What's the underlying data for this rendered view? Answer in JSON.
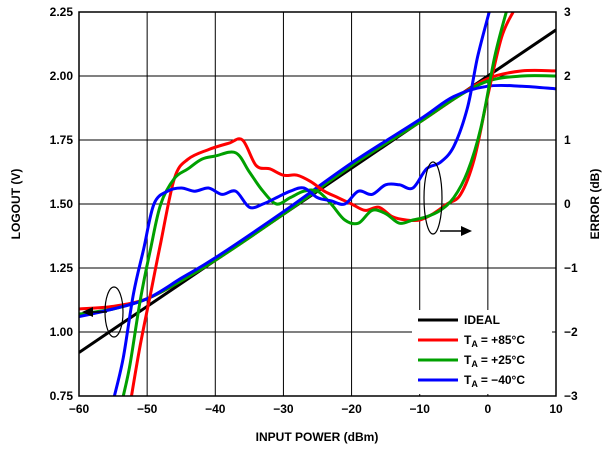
{
  "chart_data": {
    "type": "line",
    "xlabel": "INPUT POWER (dBm)",
    "ylabel_left": "LOGOUT (V)",
    "ylabel_right": "ERROR (dB)",
    "xlim": [
      -60,
      10
    ],
    "ylim_left": [
      0.75,
      2.25
    ],
    "ylim_right": [
      -3,
      3
    ],
    "grid": true,
    "legend_position": "bottom-right",
    "x_ticks": [
      "−60",
      "−50",
      "−40",
      "−30",
      "−20",
      "−10",
      "0",
      "10"
    ],
    "y_left_ticks": [
      "0.75",
      "1.00",
      "1.25",
      "1.50",
      "1.75",
      "2.00",
      "2.25"
    ],
    "y_right_ticks": [
      "−3",
      "−2",
      "−1",
      "0",
      "1",
      "2",
      "3"
    ],
    "legend": {
      "ideal": "IDEAL",
      "t85": "= +85°C",
      "t25": "= +25°C",
      "tm40": "= −40°C",
      "t_prefix": "T",
      "t_sub": "A"
    },
    "logout_series": [
      {
        "name": "IDEAL",
        "color": "#000000",
        "axis": "left",
        "x": [
          -60,
          10
        ],
        "y": [
          0.92,
          2.18
        ]
      },
      {
        "name": "T_A = +85°C",
        "color": "#ff0000",
        "axis": "left",
        "x": [
          -60,
          -55,
          -50,
          -45,
          -40,
          -30,
          -20,
          -10,
          -5,
          0,
          5,
          10
        ],
        "y": [
          1.09,
          1.1,
          1.13,
          1.2,
          1.28,
          1.46,
          1.65,
          1.82,
          1.91,
          1.99,
          2.02,
          2.02
        ]
      },
      {
        "name": "T_A = +25°C",
        "color": "#00a000",
        "axis": "left",
        "x": [
          -60,
          -55,
          -50,
          -45,
          -40,
          -30,
          -20,
          -10,
          -5,
          0,
          5,
          10
        ],
        "y": [
          1.07,
          1.09,
          1.13,
          1.2,
          1.28,
          1.46,
          1.65,
          1.82,
          1.91,
          1.98,
          2.0,
          2.0
        ]
      },
      {
        "name": "T_A = −40°C",
        "color": "#0000ff",
        "axis": "left",
        "x": [
          -60,
          -55,
          -50,
          -45,
          -40,
          -30,
          -20,
          -10,
          -5,
          0,
          5,
          10
        ],
        "y": [
          1.06,
          1.09,
          1.13,
          1.21,
          1.29,
          1.47,
          1.66,
          1.83,
          1.92,
          1.96,
          1.96,
          1.95
        ]
      }
    ],
    "error_series": [
      {
        "name": "T_A = +85°C",
        "color": "#ff0000",
        "axis": "right",
        "x": [
          -52.3,
          -51,
          -49.5,
          -48,
          -46,
          -44,
          -41,
          -38,
          -36,
          -34,
          -32,
          -30,
          -28,
          -26,
          -24,
          -22,
          -20,
          -18,
          -16,
          -14,
          -12,
          -10,
          -8,
          -6,
          -4,
          -2,
          0,
          2,
          3.7
        ],
        "y": [
          -3,
          -2.2,
          -1.4,
          -0.6,
          0.4,
          0.7,
          0.85,
          0.95,
          1.0,
          0.6,
          0.55,
          0.45,
          0.45,
          0.35,
          0.2,
          0.1,
          0.0,
          -0.1,
          -0.05,
          -0.2,
          -0.25,
          -0.25,
          -0.15,
          0.0,
          0.15,
          0.7,
          1.7,
          2.6,
          3
        ]
      },
      {
        "name": "T_A = +25°C",
        "color": "#00a000",
        "axis": "right",
        "x": [
          -53.5,
          -52.5,
          -51,
          -49.5,
          -48,
          -46,
          -44,
          -42,
          -40,
          -37,
          -35,
          -33,
          -31,
          -29,
          -27,
          -25,
          -23,
          -21,
          -19,
          -17,
          -15,
          -13,
          -11,
          -9,
          -7,
          -5,
          -3,
          -1,
          1,
          2.7
        ],
        "y": [
          -3,
          -2.5,
          -1.5,
          -0.7,
          0.0,
          0.4,
          0.55,
          0.7,
          0.75,
          0.8,
          0.5,
          0.2,
          0.0,
          0.1,
          0.2,
          0.2,
          0.0,
          -0.25,
          -0.3,
          -0.1,
          -0.15,
          -0.3,
          -0.25,
          -0.2,
          -0.1,
          0.1,
          0.5,
          1.2,
          2.3,
          3
        ]
      },
      {
        "name": "T_A = −40°C",
        "color": "#0000ff",
        "axis": "right",
        "x": [
          -54.8,
          -53.5,
          -52,
          -50.5,
          -49,
          -47,
          -45,
          -43,
          -41,
          -39,
          -37,
          -35,
          -33,
          -31,
          -29,
          -27,
          -25,
          -23,
          -21,
          -19,
          -17,
          -15,
          -13,
          -11,
          -9,
          -7,
          -5,
          -3,
          -1.5,
          0.2
        ],
        "y": [
          -3,
          -2.4,
          -1.4,
          -0.7,
          0.0,
          0.2,
          0.25,
          0.2,
          0.25,
          0.15,
          0.2,
          -0.05,
          0.0,
          0.1,
          0.2,
          0.25,
          0.1,
          0.05,
          0.0,
          0.2,
          0.15,
          0.3,
          0.3,
          0.25,
          0.55,
          0.65,
          0.9,
          1.5,
          2.3,
          3
        ]
      }
    ]
  }
}
